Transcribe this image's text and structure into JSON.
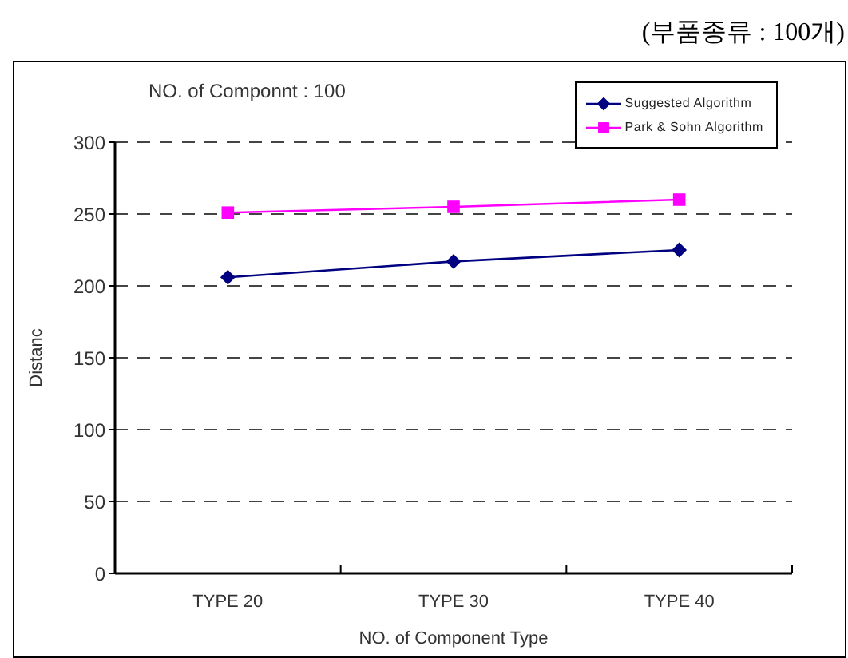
{
  "chart_data": {
    "type": "line",
    "title": "NO. of Componnt : 100",
    "annotations": [
      "(부품종류 : 100개)"
    ],
    "xlabel": "NO. of Component Type",
    "ylabel": "Distanc",
    "categories": [
      "TYPE 20",
      "TYPE 30",
      "TYPE 40"
    ],
    "series": [
      {
        "name": "Suggested Algorithm",
        "color": "#000080",
        "marker": "diamond",
        "values": [
          206,
          217,
          225
        ]
      },
      {
        "name": "Park & Sohn Algorithm",
        "color": "#ff00ff",
        "marker": "square",
        "values": [
          251,
          255,
          260
        ]
      }
    ],
    "ylim": [
      0,
      300
    ],
    "yticks": [
      0,
      50,
      100,
      150,
      200,
      250,
      300
    ],
    "grid": "y",
    "legend": "top right",
    "line_style": "solid"
  }
}
